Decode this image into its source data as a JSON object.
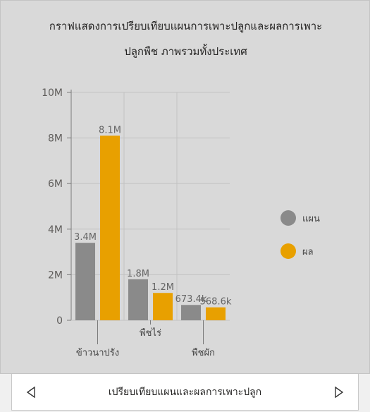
{
  "chart_data": {
    "type": "bar",
    "title": "กราฟแสดงการเปรียบเทียบแผนการเพาะปลูกและผลการเพาะ",
    "title_line2": "ปลูกพืช ภาพรวมทั้งประเทศ",
    "categories": [
      "ข้าวนาปรัง",
      "พืชไร่",
      "พืชผัก"
    ],
    "series": [
      {
        "name": "แผน",
        "values": [
          3400000,
          1800000,
          673400
        ],
        "labels": [
          "3.4M",
          "1.8M",
          "673.4k"
        ],
        "color": "#8a8a8a"
      },
      {
        "name": "ผล",
        "values": [
          8100000,
          1200000,
          568600
        ],
        "labels": [
          "8.1M",
          "1.2M",
          "568.6k"
        ],
        "color": "#e8a000"
      }
    ],
    "y_ticks": [
      0,
      2000000,
      4000000,
      6000000,
      8000000,
      10000000
    ],
    "y_tick_labels": [
      "0",
      "2M",
      "4M",
      "6M",
      "8M",
      "10M"
    ],
    "ylim": [
      0,
      10000000
    ],
    "grid": true,
    "legend_position": "right"
  },
  "nav": {
    "label": "เปรียบเทียบแผนและผลการเพาะปลูก",
    "prev_icon": "triangle-left-icon",
    "next_icon": "triangle-right-icon"
  }
}
